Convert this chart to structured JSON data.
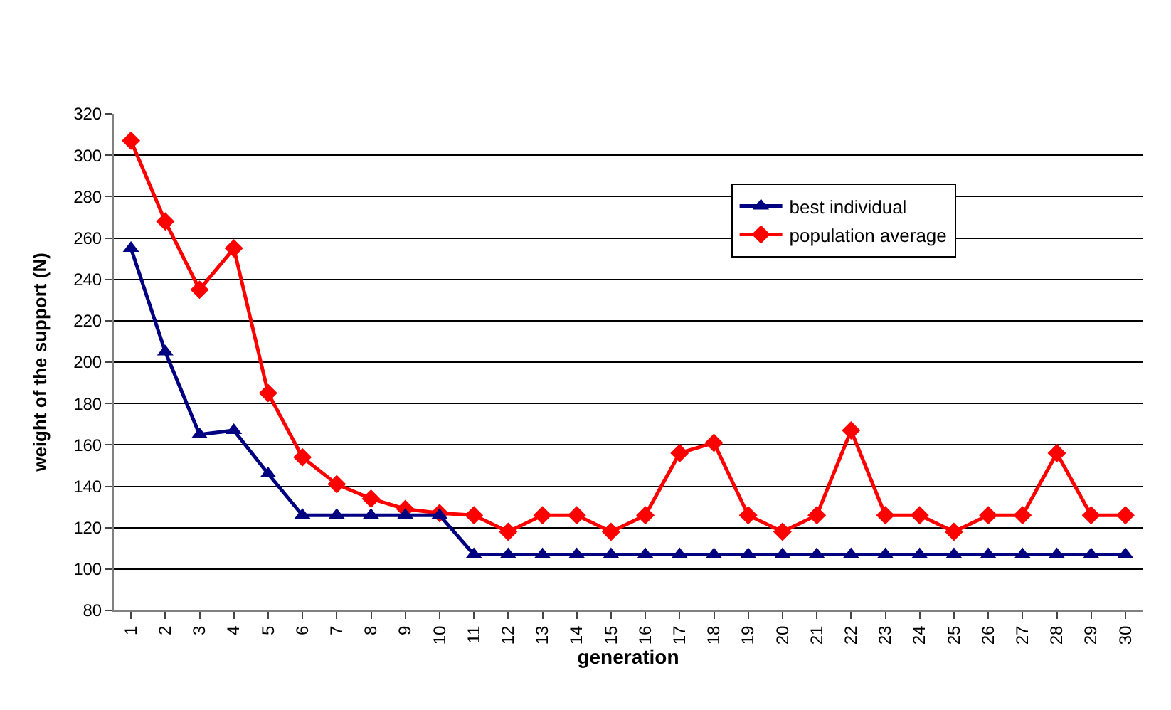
{
  "chart_data": {
    "type": "line",
    "xlabel": "generation",
    "ylabel": "weight of the support (N)",
    "categories": [
      "1",
      "2",
      "3",
      "4",
      "5",
      "6",
      "7",
      "8",
      "9",
      "10",
      "11",
      "12",
      "13",
      "14",
      "15",
      "16",
      "17",
      "18",
      "19",
      "20",
      "21",
      "22",
      "23",
      "24",
      "25",
      "26",
      "27",
      "28",
      "29",
      "30"
    ],
    "series": [
      {
        "name": "best individual",
        "color": "#000080",
        "marker": "triangle",
        "values": [
          255,
          205,
          165,
          167,
          146,
          126,
          126,
          126,
          126,
          126,
          107,
          107,
          107,
          107,
          107,
          107,
          107,
          107,
          107,
          107,
          107,
          107,
          107,
          107,
          107,
          107,
          107,
          107,
          107,
          107
        ]
      },
      {
        "name": "population average",
        "color": "#ff0000",
        "marker": "diamond",
        "values": [
          307,
          268,
          235,
          255,
          185,
          154,
          141,
          134,
          129,
          127,
          126,
          118,
          126,
          126,
          118,
          126,
          156,
          161,
          126,
          118,
          126,
          167,
          126,
          126,
          118,
          126,
          126,
          156,
          126,
          126
        ]
      }
    ],
    "ylim": [
      80,
      320
    ],
    "yticks": [
      80,
      100,
      120,
      140,
      160,
      180,
      200,
      220,
      240,
      260,
      280,
      300,
      320
    ],
    "grid": "y",
    "legend": "top right",
    "line_style": "solid"
  }
}
